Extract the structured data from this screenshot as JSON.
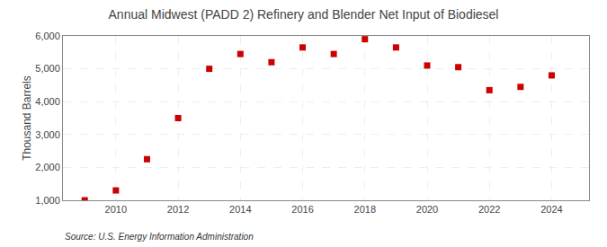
{
  "chart_data": {
    "type": "scatter",
    "title": "Annual Midwest (PADD 2) Refinery and Blender Net Input of Biodiesel",
    "ylabel": "Thousand Barrels",
    "annotations": [
      "Source: U.S. Energy Information Administration"
    ],
    "x": [
      2009,
      2010,
      2011,
      2012,
      2013,
      2014,
      2015,
      2016,
      2017,
      2018,
      2019,
      2020,
      2021,
      2022,
      2023,
      2024
    ],
    "values": [
      1000,
      1300,
      2250,
      3500,
      5000,
      5450,
      5200,
      5650,
      5450,
      5900,
      5650,
      5100,
      5050,
      4350,
      4450,
      4800
    ],
    "color": "#cc0000",
    "marker": "square",
    "xlim": [
      2008.3,
      2025.2
    ],
    "xticks": [
      2010,
      2012,
      2014,
      2016,
      2018,
      2020,
      2022,
      2024
    ],
    "ylim": [
      1000,
      6000
    ],
    "yticks": [
      {
        "value": 1000,
        "label": "1,000"
      },
      {
        "value": 2000,
        "label": "2,000"
      },
      {
        "value": 3000,
        "label": "3,000"
      },
      {
        "value": 4000,
        "label": "4,000"
      },
      {
        "value": 5000,
        "label": "5,000"
      },
      {
        "value": 6000,
        "label": "6,000"
      }
    ],
    "grid": true
  }
}
